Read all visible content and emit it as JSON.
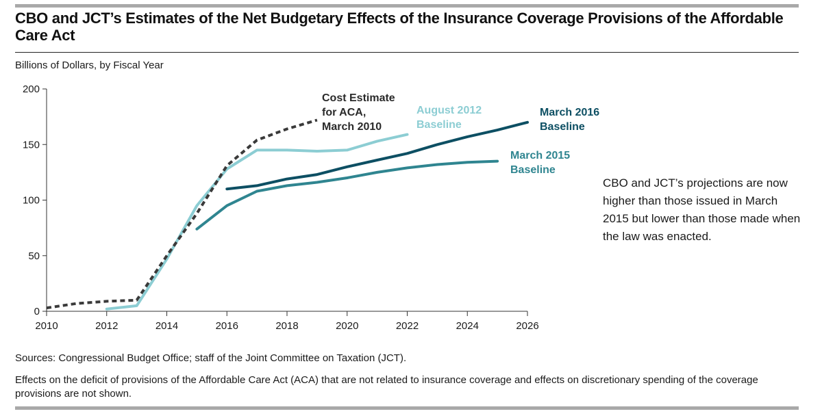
{
  "title": "CBO and JCT’s Estimates of the Net Budgetary Effects of the Insurance Coverage Provisions of the Affordable Care Act",
  "subtitle": "Billions of Dollars, by Fiscal Year",
  "note": "CBO and JCT’s projections are now higher than those issued in March 2015 but lower than those made when the law was enacted.",
  "sources": "Sources: Congressional Budget Office; staff of the Joint Committee on Taxation (JCT).",
  "footnote": "Effects on the deficit of provisions of the Affordable Care Act (ACA) that are not related to insurance coverage and effects on discretionary spending of the coverage provisions are not shown.",
  "chart_data": {
    "type": "line",
    "title": "CBO and JCT’s Estimates of the Net Budgetary Effects of the Insurance Coverage Provisions of the Affordable Care Act",
    "ylabel": "Billions of Dollars, by Fiscal Year",
    "xlabel": "",
    "xlim": [
      2010,
      2026
    ],
    "ylim": [
      0,
      200
    ],
    "xticks": [
      2010,
      2012,
      2014,
      2016,
      2018,
      2020,
      2022,
      2024,
      2026
    ],
    "yticks": [
      0,
      50,
      100,
      150,
      200
    ],
    "grid": false,
    "legend": "direct labels",
    "series": [
      {
        "name": "Cost Estimate for ACA, March 2010",
        "label_lines": [
          "Cost Estimate",
          "for ACA,",
          "March 2010"
        ],
        "style": "dashed",
        "color": "#3a3a3a",
        "x": [
          2010,
          2011,
          2012,
          2013,
          2014,
          2015,
          2016,
          2017,
          2018,
          2019
        ],
        "y": [
          3,
          7,
          9,
          10,
          50,
          88,
          131,
          154,
          164,
          172
        ]
      },
      {
        "name": "August 2012 Baseline",
        "label_lines": [
          "August 2012",
          "Baseline"
        ],
        "style": "solid",
        "color": "#8ccdd3",
        "x": [
          2012,
          2013,
          2014,
          2015,
          2016,
          2017,
          2018,
          2019,
          2020,
          2021,
          2022
        ],
        "y": [
          2,
          5,
          47,
          95,
          128,
          145,
          145,
          144,
          145,
          153,
          159
        ]
      },
      {
        "name": "March 2016 Baseline",
        "label_lines": [
          "March 2016",
          "Baseline"
        ],
        "style": "solid",
        "color": "#0d4f63",
        "x": [
          2016,
          2017,
          2018,
          2019,
          2020,
          2021,
          2022,
          2023,
          2024,
          2025,
          2026
        ],
        "y": [
          110,
          113,
          119,
          123,
          130,
          136,
          142,
          150,
          157,
          163,
          170
        ]
      },
      {
        "name": "March 2015 Baseline",
        "label_lines": [
          "March 2015",
          "Baseline"
        ],
        "style": "solid",
        "color": "#2f8590",
        "x": [
          2015,
          2016,
          2017,
          2018,
          2019,
          2020,
          2021,
          2022,
          2023,
          2024,
          2025
        ],
        "y": [
          74,
          95,
          108,
          113,
          116,
          120,
          125,
          129,
          132,
          134,
          135
        ]
      }
    ]
  }
}
